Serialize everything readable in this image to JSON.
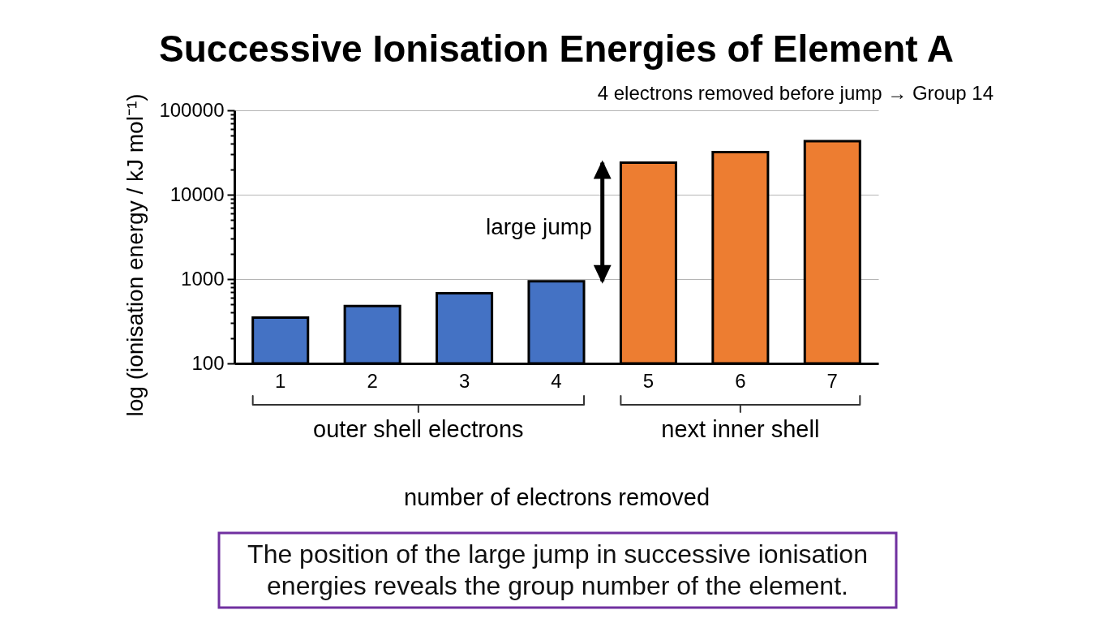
{
  "chart_data": {
    "type": "bar",
    "title": "Successive Ionisation Energies of Element A",
    "xlabel": "number of electrons removed",
    "ylabel": "log (ionisation energy / kJ mol⁻¹)",
    "categories": [
      "1",
      "2",
      "3",
      "4",
      "5",
      "6",
      "7"
    ],
    "values": [
      350,
      480,
      680,
      940,
      24000,
      32000,
      43000
    ],
    "colors": [
      "#4472c4",
      "#4472c4",
      "#4472c4",
      "#4472c4",
      "#ed7d31",
      "#ed7d31",
      "#ed7d31"
    ],
    "log": "y",
    "ylim": [
      100,
      100000
    ],
    "yticks": [
      100,
      {
        "value": 200,
        "label": null
      },
      {
        "value": 300,
        "label": null
      },
      {
        "value": 400,
        "label": null
      },
      {
        "value": 500,
        "label": null
      },
      {
        "value": 600,
        "label": null
      },
      {
        "value": 700,
        "label": null
      },
      {
        "value": 800,
        "label": null
      },
      {
        "value": 900,
        "label": null
      },
      1000,
      {
        "value": 2000,
        "label": null
      },
      {
        "value": 3000,
        "label": null
      },
      {
        "value": 4000,
        "label": null
      },
      {
        "value": 5000,
        "label": null
      },
      {
        "value": 6000,
        "label": null
      },
      {
        "value": 7000,
        "label": null
      },
      {
        "value": 8000,
        "label": null
      },
      {
        "value": 9000,
        "label": null
      },
      10000,
      {
        "value": 20000,
        "label": null
      },
      {
        "value": 30000,
        "label": null
      },
      {
        "value": 40000,
        "label": null
      },
      {
        "value": 50000,
        "label": null
      },
      {
        "value": 60000,
        "label": null
      },
      {
        "value": 70000,
        "label": null
      },
      {
        "value": 80000,
        "label": null
      },
      {
        "value": 90000,
        "label": null
      },
      100000
    ],
    "grid": "y",
    "annotations": [
      "4 electrons removed before jump → Group 14",
      "large jump",
      "outer shell electrons",
      "next inner shell",
      "The position of the large jump in successive ionisation energies reveals the group number of the element."
    ]
  }
}
